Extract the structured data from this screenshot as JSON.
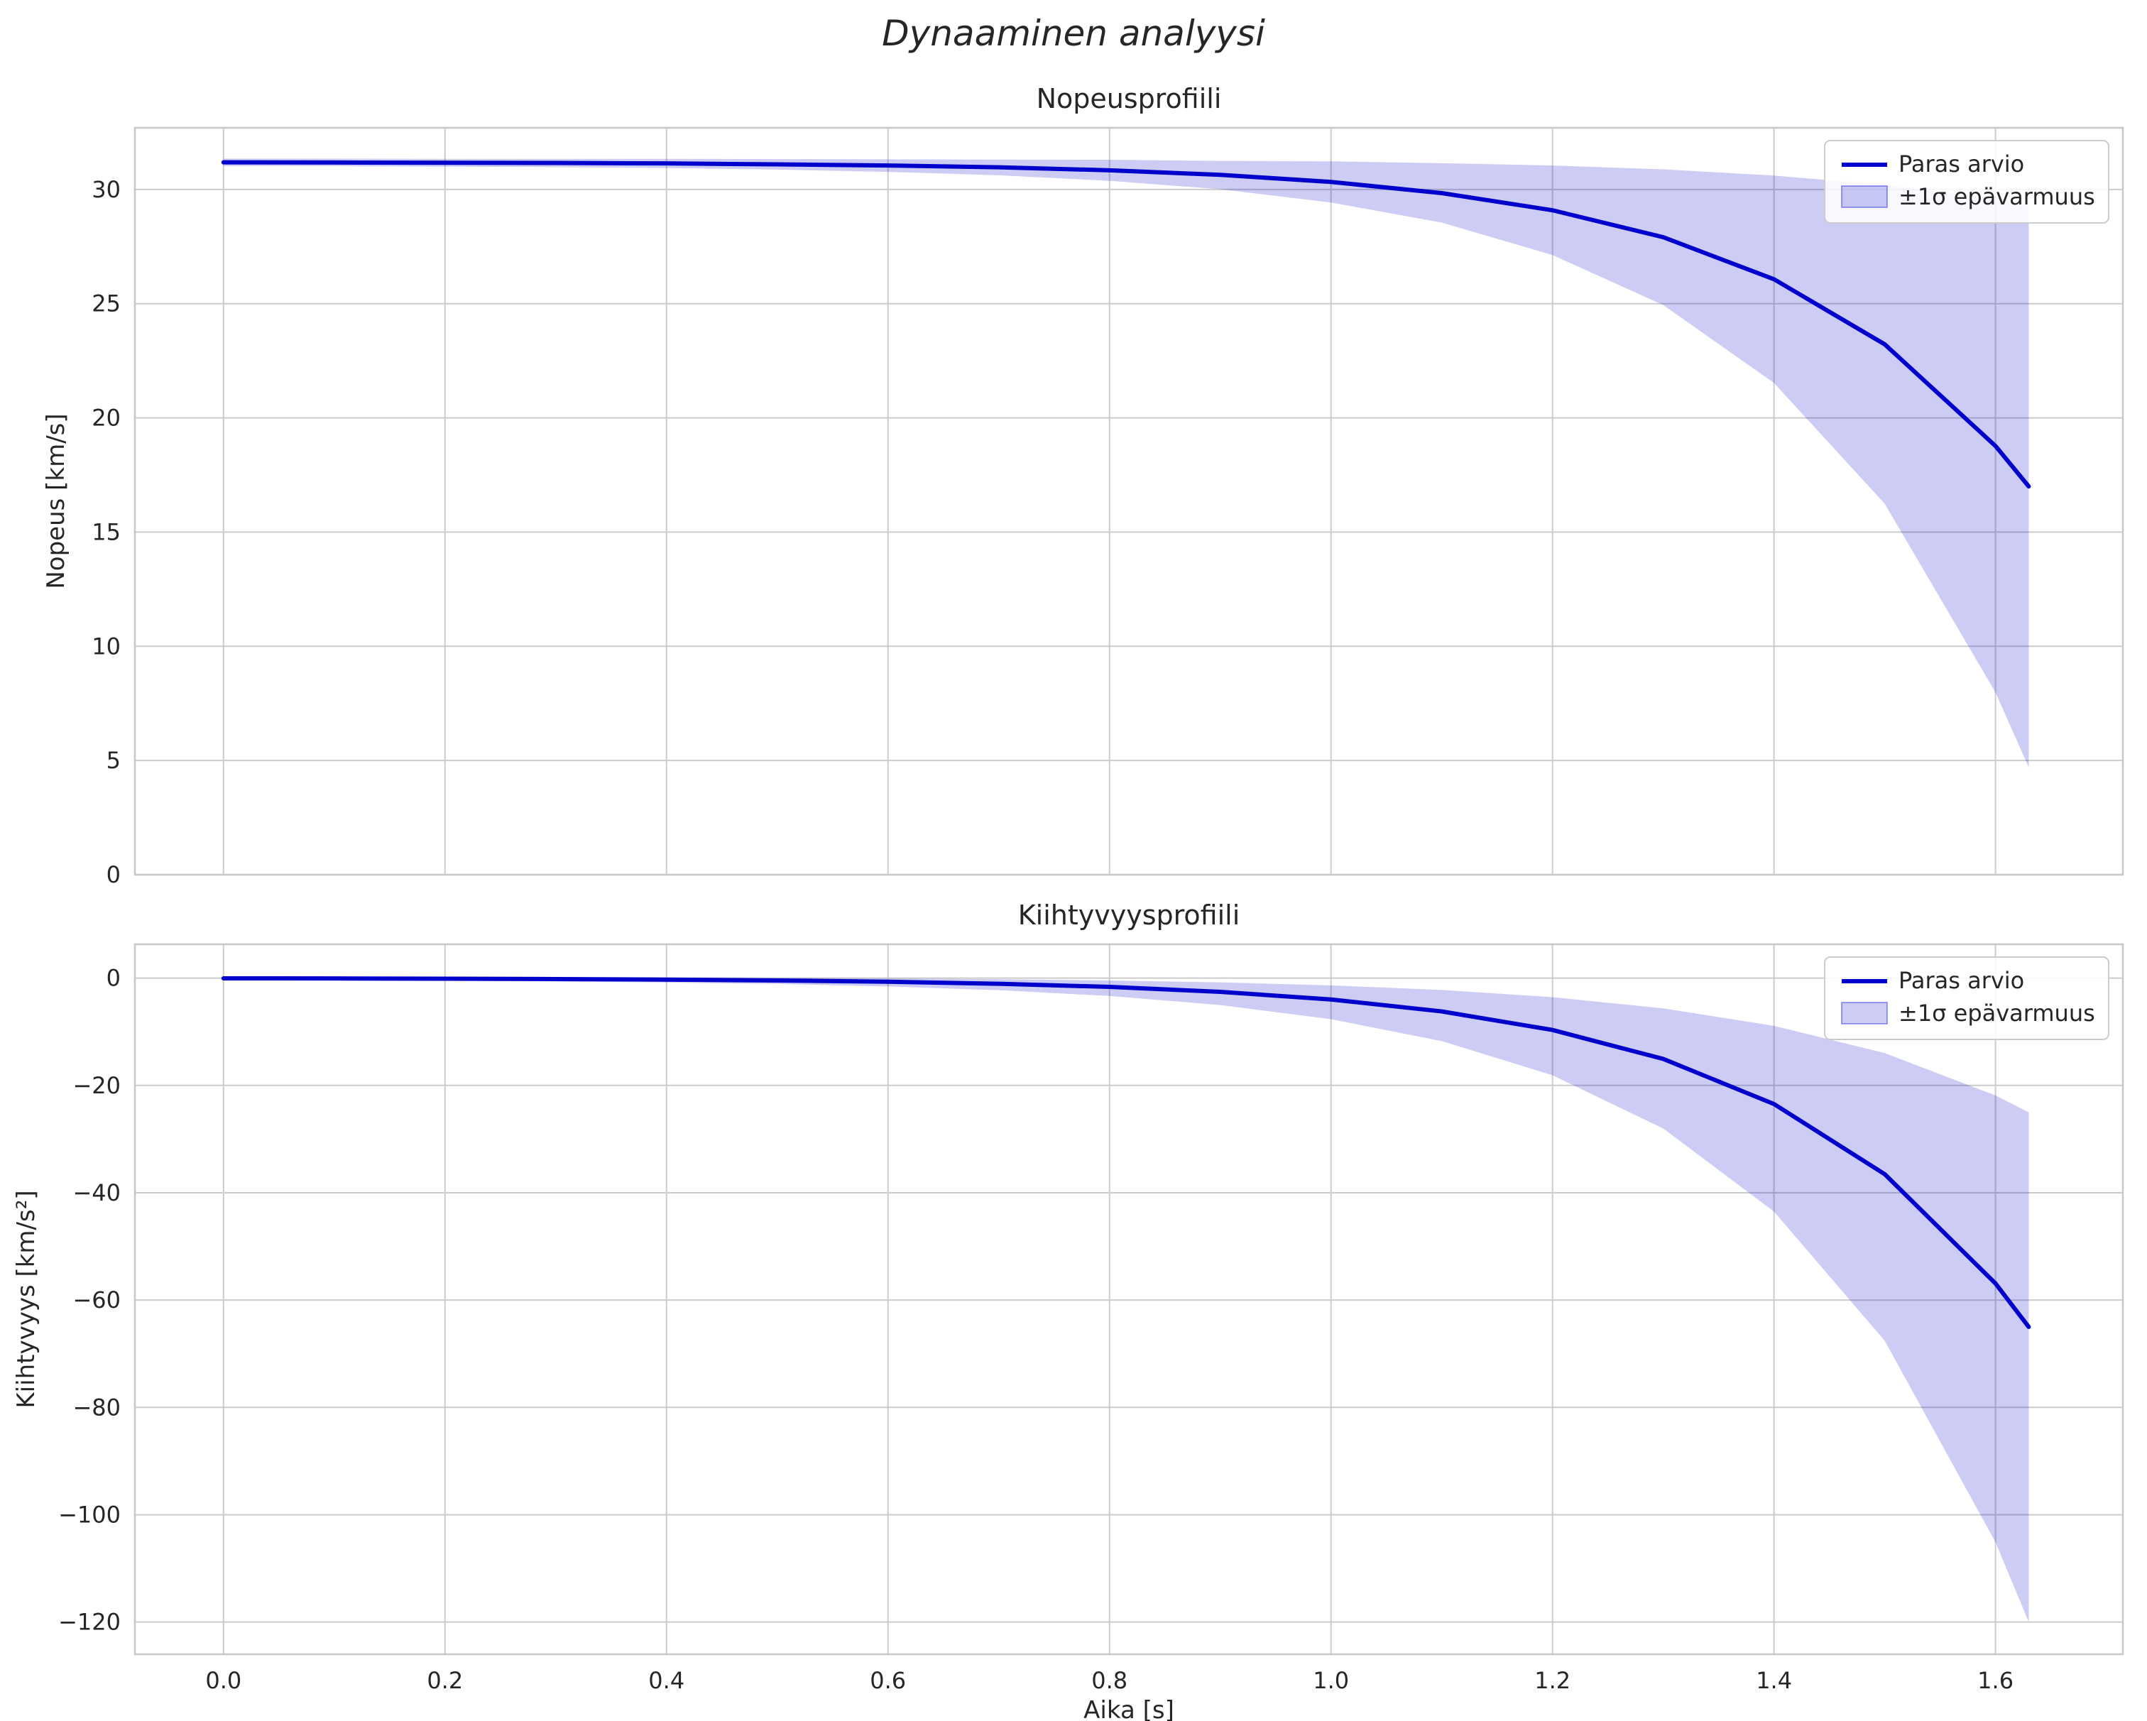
{
  "figure": {
    "title": "Dynaaminen analyysi",
    "line_color": "#0000cd",
    "band_color": "#0000cd",
    "band_opacity": 0.2,
    "band_edge_opacity": 0.35,
    "grid_color": "#cccccc",
    "spine_color": "#c9c9c9",
    "text_color": "#262626",
    "background": "#ffffff"
  },
  "chart_data": [
    {
      "type": "line",
      "title": "Nopeusprofiili",
      "ylabel": "Nopeus [km/s]",
      "xlabel": "",
      "grid": true,
      "legend_position": "upper right",
      "legend": [
        "Paras arvio",
        "±1σ epävarmuus"
      ],
      "xlim": [
        -0.08,
        1.715
      ],
      "ylim": [
        0,
        32.7
      ],
      "xticks": {
        "values": [
          0.0,
          0.2,
          0.4,
          0.6,
          0.8,
          1.0,
          1.2,
          1.4,
          1.6
        ],
        "labels": [
          "0.0",
          "0.2",
          "0.4",
          "0.6",
          "0.8",
          "1.0",
          "1.2",
          "1.4",
          "1.6"
        ]
      },
      "show_xtick_labels": false,
      "yticks": {
        "values": [
          0,
          5,
          10,
          15,
          20,
          25,
          30
        ],
        "labels": [
          "0",
          "5",
          "10",
          "15",
          "20",
          "25",
          "30"
        ]
      },
      "x": [
        0.0,
        0.1,
        0.2,
        0.3,
        0.4,
        0.5,
        0.6,
        0.7,
        0.8,
        0.9,
        1.0,
        1.1,
        1.2,
        1.3,
        1.4,
        1.5,
        1.6,
        1.63
      ],
      "series": [
        {
          "name": "Paras arvio",
          "values": [
            31.19,
            31.18,
            31.17,
            31.16,
            31.14,
            31.1,
            31.05,
            30.97,
            30.84,
            30.64,
            30.33,
            29.84,
            29.09,
            27.91,
            26.07,
            23.22,
            18.77,
            17.0
          ]
        }
      ],
      "band": {
        "name": "±1σ epävarmuus",
        "upper": [
          31.35,
          31.35,
          31.34,
          31.34,
          31.34,
          31.33,
          31.32,
          31.31,
          31.3,
          31.25,
          31.23,
          31.15,
          31.05,
          30.88,
          30.61,
          30.2,
          29.56,
          29.3
        ],
        "lower": [
          31.03,
          31.02,
          31.0,
          30.98,
          30.94,
          30.87,
          30.77,
          30.62,
          30.38,
          30.01,
          29.43,
          28.55,
          27.13,
          24.94,
          21.53,
          16.24,
          7.98,
          4.7
        ]
      }
    },
    {
      "type": "line",
      "title": "Kiihtyvyysprofiili",
      "ylabel": "Kiihtyvyys [km/s²]",
      "xlabel": "Aika [s]",
      "grid": true,
      "legend_position": "upper right",
      "legend": [
        "Paras arvio",
        "±1σ epävarmuus"
      ],
      "xlim": [
        -0.08,
        1.715
      ],
      "ylim": [
        -126,
        6.3
      ],
      "xticks": {
        "values": [
          0.0,
          0.2,
          0.4,
          0.6,
          0.8,
          1.0,
          1.2,
          1.4,
          1.6
        ],
        "labels": [
          "0.0",
          "0.2",
          "0.4",
          "0.6",
          "0.8",
          "1.0",
          "1.2",
          "1.4",
          "1.6"
        ]
      },
      "show_xtick_labels": true,
      "yticks": {
        "values": [
          0,
          -20,
          -40,
          -60,
          -80,
          -100,
          -120
        ],
        "labels": [
          "0",
          "−20",
          "−40",
          "−60",
          "−80",
          "−100",
          "−120"
        ]
      },
      "x": [
        0.0,
        0.1,
        0.2,
        0.3,
        0.4,
        0.5,
        0.6,
        0.7,
        0.8,
        0.9,
        1.0,
        1.1,
        1.2,
        1.3,
        1.4,
        1.5,
        1.6,
        1.63
      ],
      "series": [
        {
          "name": "Paras arvio",
          "values": [
            -0.05,
            -0.07,
            -0.12,
            -0.18,
            -0.28,
            -0.44,
            -0.68,
            -1.06,
            -1.64,
            -2.56,
            -3.99,
            -6.21,
            -9.67,
            -15.07,
            -23.47,
            -36.54,
            -56.91,
            -65.0
          ]
        }
      ],
      "band": {
        "name": "±1σ epävarmuus",
        "upper": [
          0.18,
          0.17,
          0.16,
          0.13,
          0.09,
          0.03,
          -0.06,
          -0.21,
          -0.44,
          -0.79,
          -1.35,
          -2.21,
          -3.55,
          -5.64,
          -8.9,
          -13.97,
          -21.87,
          -25.0
        ],
        "lower": [
          -0.39,
          -0.44,
          -0.51,
          -0.63,
          -0.82,
          -1.1,
          -1.55,
          -2.25,
          -3.33,
          -5.02,
          -7.65,
          -11.74,
          -18.11,
          -28.04,
          -43.51,
          -67.59,
          -105.11,
          -120.0
        ]
      }
    }
  ]
}
